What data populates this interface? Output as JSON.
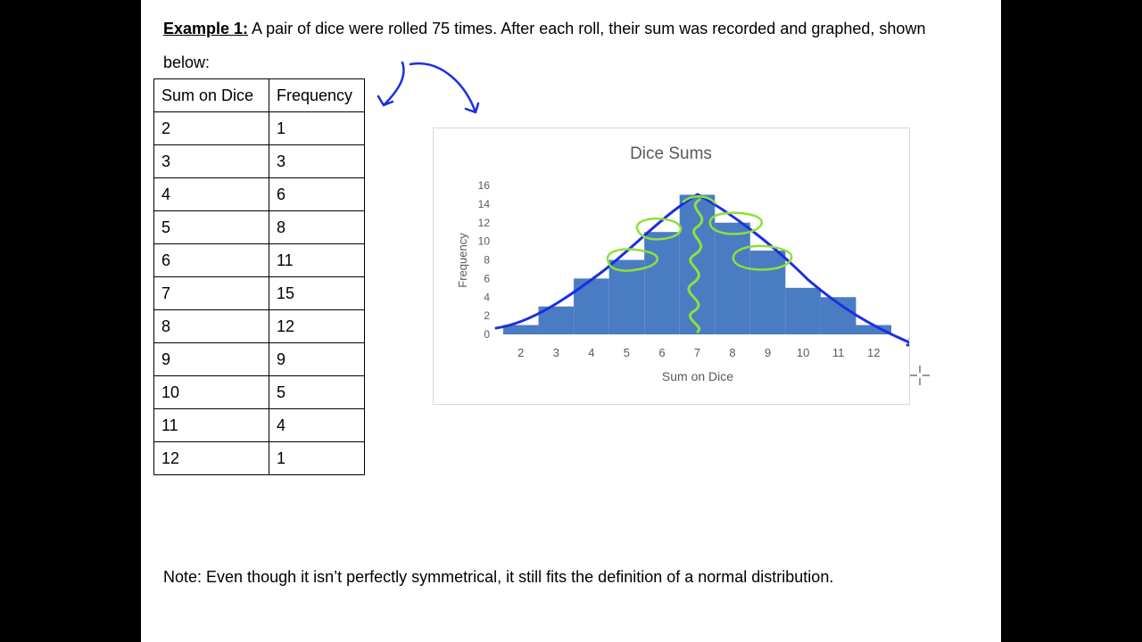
{
  "heading": {
    "label": "Example 1:",
    "text": " A pair of dice were rolled 75 times.  After each roll, their sum was recorded and graphed, shown below:"
  },
  "table": {
    "headers": [
      "Sum on Dice",
      "Frequency"
    ],
    "rows": [
      [
        "2",
        "1"
      ],
      [
        "3",
        "3"
      ],
      [
        "4",
        "6"
      ],
      [
        "5",
        "8"
      ],
      [
        "6",
        "11"
      ],
      [
        "7",
        "15"
      ],
      [
        "8",
        "12"
      ],
      [
        "9",
        "9"
      ],
      [
        "10",
        "5"
      ],
      [
        "11",
        "4"
      ],
      [
        "12",
        "1"
      ]
    ]
  },
  "chart_data": {
    "type": "bar",
    "title": "Dice Sums",
    "xlabel": "Sum on Dice",
    "ylabel": "Frequency",
    "categories": [
      "2",
      "3",
      "4",
      "5",
      "6",
      "7",
      "8",
      "9",
      "10",
      "11",
      "12"
    ],
    "values": [
      1,
      3,
      6,
      8,
      11,
      15,
      12,
      9,
      5,
      4,
      1
    ],
    "ylim": [
      0,
      16
    ],
    "yticks": [
      0,
      2,
      4,
      6,
      8,
      10,
      12,
      14,
      16
    ],
    "grid": false,
    "bar_color": "#4a7cc4",
    "annotation_colors": {
      "curve": "#1a2fe0",
      "marks": "#8ee03a"
    }
  },
  "note": "Note: Even though it isn’t perfectly symmetrical, it still fits the definition of a normal distribution."
}
